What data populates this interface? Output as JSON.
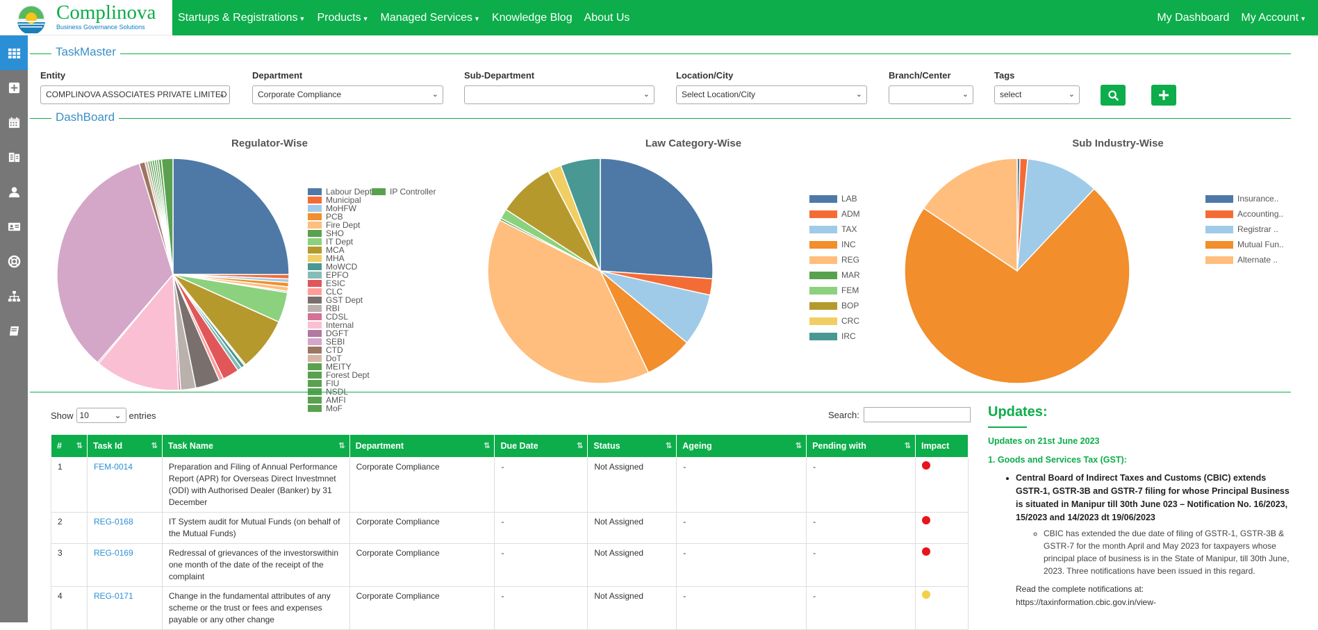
{
  "brand": {
    "name": "Complinova",
    "tagline": "Business Governance Solutions"
  },
  "nav": {
    "left": [
      {
        "label": "Startups & Registrations",
        "caret": true
      },
      {
        "label": "Products",
        "caret": true
      },
      {
        "label": "Managed Services",
        "caret": true
      },
      {
        "label": "Knowledge Blog",
        "caret": false
      },
      {
        "label": "About Us",
        "caret": false
      }
    ],
    "right": [
      {
        "label": "My Dashboard",
        "caret": false
      },
      {
        "label": "My Account",
        "caret": true
      }
    ]
  },
  "sidebar": {
    "icons": [
      "grid-icon",
      "plus-square-icon",
      "calendar-icon",
      "org-chart-icon",
      "user-icon",
      "id-card-icon",
      "lifebuoy-icon",
      "sitemap-icon",
      "book-icon"
    ]
  },
  "sections": {
    "taskmaster": "TaskMaster",
    "dashboard": "DashBoard"
  },
  "filters": {
    "entity": {
      "label": "Entity",
      "value": "COMPLINOVA ASSOCIATES PRIVATE LIMITED"
    },
    "department": {
      "label": "Department",
      "value": "Corporate Compliance"
    },
    "subdepartment": {
      "label": "Sub-Department",
      "value": ""
    },
    "location": {
      "label": "Location/City",
      "value": "Select Location/City"
    },
    "branch": {
      "label": "Branch/Center",
      "value": ""
    },
    "tags": {
      "label": "Tags",
      "value": "select"
    }
  },
  "charts_text": {
    "regulator_title": "Regulator-Wise",
    "law_title": "Law Category-Wise",
    "subind_title": "Sub Industry-Wise"
  },
  "chart_data": [
    {
      "type": "pie",
      "title": "Regulator-Wise",
      "slices": [
        {
          "label": "Labour Dept",
          "value": 25.0,
          "color": "#4e79a7"
        },
        {
          "label": "Municipal",
          "value": 0.6,
          "color": "#f46c35"
        },
        {
          "label": "MoHFW",
          "value": 0.5,
          "color": "#a0cbe8"
        },
        {
          "label": "PCB",
          "value": 0.6,
          "color": "#f28e2b"
        },
        {
          "label": "Fire Dept",
          "value": 0.6,
          "color": "#ffbe7d"
        },
        {
          "label": "SHO",
          "value": 0.2,
          "color": "#59a14f"
        },
        {
          "label": "IT Dept",
          "value": 4.2,
          "color": "#8cd17d"
        },
        {
          "label": "MCA",
          "value": 7.5,
          "color": "#b6992d"
        },
        {
          "label": "MHA",
          "value": 0.2,
          "color": "#f1ce63"
        },
        {
          "label": "MoWCD",
          "value": 0.5,
          "color": "#499894"
        },
        {
          "label": "EPFO",
          "value": 0.6,
          "color": "#86bcb6"
        },
        {
          "label": "ESIC",
          "value": 2.3,
          "color": "#e15759"
        },
        {
          "label": "CLC",
          "value": 0.6,
          "color": "#ff9d9a"
        },
        {
          "label": "GST Dept",
          "value": 3.4,
          "color": "#79706e"
        },
        {
          "label": "RBI",
          "value": 2.1,
          "color": "#bab0ac"
        },
        {
          "label": "CDSL",
          "value": 0.3,
          "color": "#d37295"
        },
        {
          "label": "Internal",
          "value": 11.8,
          "color": "#fabfd2"
        },
        {
          "label": "DGFT",
          "value": 0.2,
          "color": "#b07aa1"
        },
        {
          "label": "SEBI",
          "value": 34.0,
          "color": "#d4a6c8"
        },
        {
          "label": "CTD",
          "value": 0.8,
          "color": "#9d7660"
        },
        {
          "label": "DoT",
          "value": 0.4,
          "color": "#d7b5a6"
        },
        {
          "label": "MEITY",
          "value": 0.3,
          "color": "#59a14f"
        },
        {
          "label": "Forest Dept",
          "value": 0.3,
          "color": "#59a14f"
        },
        {
          "label": "FIU",
          "value": 0.3,
          "color": "#59a14f"
        },
        {
          "label": "NSDL",
          "value": 0.3,
          "color": "#59a14f"
        },
        {
          "label": "AMFI",
          "value": 0.3,
          "color": "#59a14f"
        },
        {
          "label": "MoF",
          "value": 0.4,
          "color": "#59a14f"
        },
        {
          "label": "IP Controller",
          "value": 1.6,
          "color": "#59a14f"
        }
      ]
    },
    {
      "type": "pie",
      "title": "Law Category-Wise",
      "slices": [
        {
          "label": "LAB",
          "value": 25.6,
          "color": "#4e79a7"
        },
        {
          "label": "ADM",
          "value": 2.3,
          "color": "#f46c35"
        },
        {
          "label": "TAX",
          "value": 7.4,
          "color": "#a0cbe8"
        },
        {
          "label": "INC",
          "value": 6.8,
          "color": "#f28e2b"
        },
        {
          "label": "REG",
          "value": 38.7,
          "color": "#ffbe7d"
        },
        {
          "label": "MAR",
          "value": 0.3,
          "color": "#59a14f"
        },
        {
          "label": "FEM",
          "value": 1.4,
          "color": "#8cd17d"
        },
        {
          "label": "BOP",
          "value": 8.0,
          "color": "#b6992d"
        },
        {
          "label": "CRC",
          "value": 1.9,
          "color": "#f1ce63"
        },
        {
          "label": "IRC",
          "value": 5.6,
          "color": "#499894"
        }
      ]
    },
    {
      "type": "pie",
      "title": "Sub Industry-Wise",
      "slices": [
        {
          "label": "Insurance..",
          "value": 0.4,
          "color": "#4e79a7"
        },
        {
          "label": "Accounting..",
          "value": 1.1,
          "color": "#f46c35"
        },
        {
          "label": "Registrar ..",
          "value": 10.5,
          "color": "#a0cbe8"
        },
        {
          "label": "Mutual Fun..",
          "value": 72.4,
          "color": "#f28e2b"
        },
        {
          "label": "Alternate ..",
          "value": 15.6,
          "color": "#ffbe7d"
        }
      ]
    }
  ],
  "table": {
    "show_label": "Show",
    "show_value": "10",
    "entries_label": "entries",
    "search_label": "Search:",
    "headers": [
      "#",
      "Task Id",
      "Task Name",
      "Department",
      "Due Date",
      "Status",
      "Ageing",
      "Pending with",
      "Impact"
    ],
    "rows": [
      {
        "num": "1",
        "id": "FEM-0014",
        "name": "Preparation and Filing of Annual Performance Report (APR) for Overseas Direct Investmnet (ODI) with Authorised Dealer (Banker) by 31 December",
        "dept": "Corporate Compliance",
        "due": "-",
        "status": "Not Assigned",
        "ageing": "-",
        "pending": "-",
        "impact": "#e8141c"
      },
      {
        "num": "2",
        "id": "REG-0168",
        "name": "IT System audit for Mutual Funds (on behalf of the Mutual Funds)",
        "dept": "Corporate Compliance",
        "due": "-",
        "status": "Not Assigned",
        "ageing": "-",
        "pending": "-",
        "impact": "#e8141c"
      },
      {
        "num": "3",
        "id": "REG-0169",
        "name": "Redressal of grievances of the investorswithin one month of the date of the receipt of the complaint",
        "dept": "Corporate Compliance",
        "due": "-",
        "status": "Not Assigned",
        "ageing": "-",
        "pending": "-",
        "impact": "#e8141c"
      },
      {
        "num": "4",
        "id": "REG-0171",
        "name": "Change in the fundamental attributes of any scheme or the trust or fees and expenses payable or any other change",
        "dept": "Corporate Compliance",
        "due": "-",
        "status": "Not Assigned",
        "ageing": "-",
        "pending": "-",
        "impact": "#f2d04a"
      }
    ]
  },
  "updates": {
    "title": "Updates:",
    "date_line": "Updates on 21st June 2023",
    "section": "1. Goods and Services Tax (GST):",
    "bullet": "Central Board of Indirect Taxes and Customs (CBIC)  extends GSTR-1, GSTR-3B and GSTR-7 filing for whose Principal Business is situated in Manipur till 30th June 023 – Notification No. 16/2023, 15/2023 and 14/2023 dt 19/06/2023",
    "sub_bullet": "CBIC has extended the due date of filing of GSTR-1, GSTR-3B & GSTR-7 for the month April and May 2023 for taxpayers whose principal place of business is in the State of Manipur, till 30th June, 2023. Three notifications have been issued in this regard.",
    "read_more": "Read the complete notifications at:",
    "url": "https://taxinformation.cbic.gov.in/view-"
  },
  "colors": {
    "primary": "#0cad4a",
    "link": "#2b8fd6",
    "sidebar": "#777777",
    "sidebar_active": "#2b8fd6"
  }
}
